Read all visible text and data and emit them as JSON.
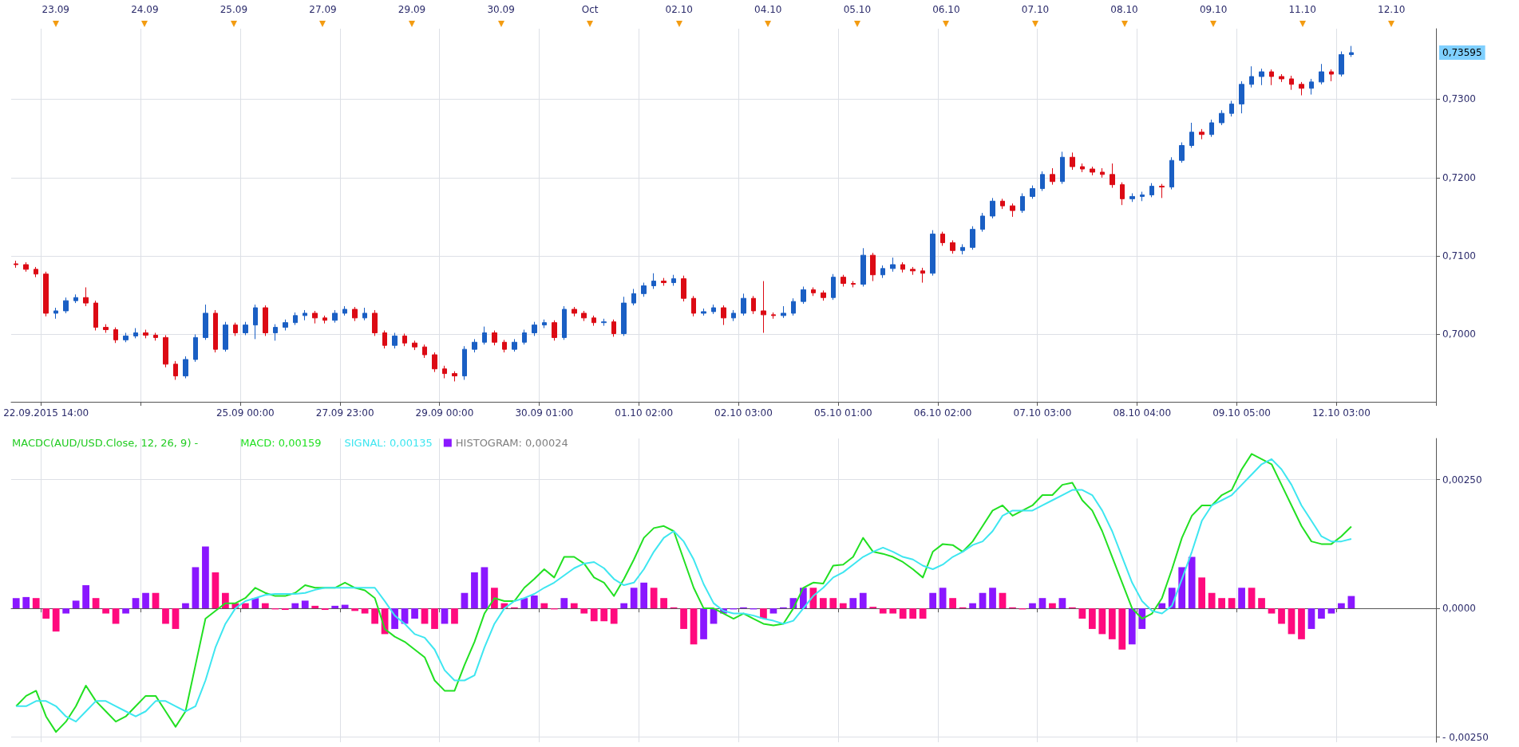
{
  "chart_data": [
    {
      "type": "candlestick",
      "categories": [
        null,
        null,
        null,
        "22.09.2015 14:00",
        null,
        null,
        null,
        null,
        null,
        null,
        null,
        null,
        null,
        null,
        null,
        null,
        null,
        null,
        null,
        null,
        null,
        null,
        null,
        "25.09 00:00",
        null,
        null,
        null,
        null,
        null,
        null,
        null,
        null,
        null,
        "27.09 23:00",
        null,
        null,
        null,
        null,
        null,
        null,
        null,
        null,
        null,
        "29.09 00:00",
        null,
        null,
        null,
        null,
        null,
        null,
        null,
        null,
        null,
        "30.09 01:00",
        null,
        null,
        null,
        null,
        null,
        null,
        null,
        null,
        null,
        "01.10 02:00",
        null,
        null,
        null,
        null,
        null,
        null,
        null,
        null,
        null,
        "02.10 03:00",
        null,
        null,
        null,
        null,
        null,
        null,
        null,
        null,
        null,
        "05.10 01:00",
        null,
        null,
        null,
        null,
        null,
        null,
        null,
        null,
        null,
        "06.10 02:00",
        null,
        null,
        null,
        null,
        null,
        null,
        null,
        null,
        null,
        "07.10 03:00",
        null,
        null,
        null,
        null,
        null,
        null,
        null,
        null,
        null,
        "08.10 04:00",
        null,
        null,
        null,
        null,
        null,
        null,
        null,
        null,
        null,
        "09.10 05:00",
        null,
        null,
        null,
        null,
        null,
        null,
        null,
        null,
        null,
        "12.10 03:00",
        null,
        null,
        null,
        null,
        null,
        null,
        null,
        null,
        null
      ],
      "ohlc": [
        [
          0.709,
          0.7094,
          0.7085,
          0.7089
        ],
        [
          0.7089,
          0.7092,
          0.708,
          0.7083
        ],
        [
          0.7083,
          0.7086,
          0.7073,
          0.7077
        ],
        [
          0.7077,
          0.708,
          0.7023,
          0.7027
        ],
        [
          0.7027,
          0.7034,
          0.702,
          0.703
        ],
        [
          0.703,
          0.7047,
          0.7027,
          0.7043
        ],
        [
          0.7043,
          0.7051,
          0.704,
          0.7047
        ],
        [
          0.7047,
          0.706,
          0.7036,
          0.704
        ],
        [
          0.704,
          0.7043,
          0.7005,
          0.7009
        ],
        [
          0.7009,
          0.7013,
          0.7002,
          0.7006
        ],
        [
          0.7006,
          0.7009,
          0.6989,
          0.6993
        ],
        [
          0.6993,
          0.7002,
          0.699,
          0.6998
        ],
        [
          0.6998,
          0.7008,
          0.6995,
          0.7002
        ],
        [
          0.7002,
          0.7006,
          0.6995,
          0.6999
        ],
        [
          0.6999,
          0.7002,
          0.6992,
          0.6996
        ],
        [
          0.6996,
          0.6999,
          0.6958,
          0.6962
        ],
        [
          0.6962,
          0.6966,
          0.6942,
          0.6947
        ],
        [
          0.6947,
          0.6972,
          0.6944,
          0.6968
        ],
        [
          0.6968,
          0.7,
          0.6965,
          0.6996
        ],
        [
          0.6996,
          0.7038,
          0.6993,
          0.7027
        ],
        [
          0.7027,
          0.7031,
          0.6977,
          0.6981
        ],
        [
          0.6981,
          0.7016,
          0.6978,
          0.7012
        ],
        [
          0.7012,
          0.7015,
          0.6998,
          0.7002
        ],
        [
          0.7002,
          0.7016,
          0.6999,
          0.7012
        ],
        [
          0.7012,
          0.7038,
          0.6994,
          0.7034
        ],
        [
          0.7034,
          0.7037,
          0.6998,
          0.7002
        ],
        [
          0.7002,
          0.7013,
          0.6992,
          0.7009
        ],
        [
          0.7009,
          0.7019,
          0.7005,
          0.7015
        ],
        [
          0.7015,
          0.7028,
          0.7012,
          0.7024
        ],
        [
          0.7024,
          0.7031,
          0.7018,
          0.7027
        ],
        [
          0.7027,
          0.703,
          0.7014,
          0.7021
        ],
        [
          0.7021,
          0.7024,
          0.7014,
          0.7018
        ],
        [
          0.7018,
          0.7031,
          0.7015,
          0.7027
        ],
        [
          0.7027,
          0.7036,
          0.7024,
          0.7032
        ],
        [
          0.7032,
          0.7035,
          0.7017,
          0.7021
        ],
        [
          0.7021,
          0.7034,
          0.7018,
          0.7027
        ],
        [
          0.7027,
          0.7031,
          0.6998,
          0.7002
        ],
        [
          0.7002,
          0.7005,
          0.6982,
          0.6986
        ],
        [
          0.6986,
          0.7002,
          0.6982,
          0.6998
        ],
        [
          0.6998,
          0.7001,
          0.6985,
          0.6989
        ],
        [
          0.6989,
          0.6992,
          0.698,
          0.6984
        ],
        [
          0.6984,
          0.6987,
          0.697,
          0.6974
        ],
        [
          0.6974,
          0.6977,
          0.6952,
          0.6956
        ],
        [
          0.6956,
          0.696,
          0.6944,
          0.695
        ],
        [
          0.695,
          0.6953,
          0.694,
          0.6947
        ],
        [
          0.6947,
          0.6985,
          0.6942,
          0.6981
        ],
        [
          0.6981,
          0.6994,
          0.6977,
          0.699
        ],
        [
          0.699,
          0.701,
          0.6987,
          0.7002
        ],
        [
          0.7002,
          0.7005,
          0.6986,
          0.699
        ],
        [
          0.699,
          0.6993,
          0.6977,
          0.6981
        ],
        [
          0.6981,
          0.6994,
          0.6978,
          0.699
        ],
        [
          0.699,
          0.7006,
          0.6987,
          0.7002
        ],
        [
          0.7002,
          0.7016,
          0.6998,
          0.7012
        ],
        [
          0.7012,
          0.7019,
          0.7008,
          0.7015
        ],
        [
          0.7015,
          0.7018,
          0.6992,
          0.6996
        ],
        [
          0.6996,
          0.7036,
          0.6993,
          0.7032
        ],
        [
          0.7032,
          0.7035,
          0.7023,
          0.7027
        ],
        [
          0.7027,
          0.703,
          0.7017,
          0.7021
        ],
        [
          0.7021,
          0.7024,
          0.7011,
          0.7015
        ],
        [
          0.7015,
          0.702,
          0.7011,
          0.7016
        ],
        [
          0.7016,
          0.7019,
          0.6997,
          0.7001
        ],
        [
          0.7001,
          0.7048,
          0.6998,
          0.704
        ],
        [
          0.704,
          0.7058,
          0.7037,
          0.7052
        ],
        [
          0.7052,
          0.7066,
          0.7048,
          0.7062
        ],
        [
          0.7062,
          0.7078,
          0.7058,
          0.7068
        ],
        [
          0.7068,
          0.7072,
          0.7062,
          0.7066
        ],
        [
          0.7066,
          0.7076,
          0.7062,
          0.7071
        ],
        [
          0.7071,
          0.7075,
          0.7042,
          0.7046
        ],
        [
          0.7046,
          0.7049,
          0.7023,
          0.7027
        ],
        [
          0.7027,
          0.7033,
          0.7024,
          0.7029
        ],
        [
          0.7029,
          0.7038,
          0.7026,
          0.7034
        ],
        [
          0.7034,
          0.7037,
          0.7012,
          0.7021
        ],
        [
          0.7021,
          0.7031,
          0.7017,
          0.7027
        ],
        [
          0.7027,
          0.7052,
          0.7024,
          0.7046
        ],
        [
          0.7046,
          0.7049,
          0.7026,
          0.703
        ],
        [
          0.703,
          0.7068,
          0.7002,
          0.7025
        ],
        [
          0.7025,
          0.7028,
          0.702,
          0.7024
        ],
        [
          0.7024,
          0.7036,
          0.7021,
          0.7027
        ],
        [
          0.7027,
          0.7046,
          0.7024,
          0.7042
        ],
        [
          0.7042,
          0.7061,
          0.7039,
          0.7057
        ],
        [
          0.7057,
          0.706,
          0.7049,
          0.7053
        ],
        [
          0.7053,
          0.7056,
          0.7043,
          0.7047
        ],
        [
          0.7047,
          0.7077,
          0.7044,
          0.7073
        ],
        [
          0.7073,
          0.7076,
          0.7061,
          0.7065
        ],
        [
          0.7065,
          0.7068,
          0.706,
          0.7064
        ],
        [
          0.7064,
          0.711,
          0.7061,
          0.7101
        ],
        [
          0.7101,
          0.7104,
          0.7068,
          0.7076
        ],
        [
          0.7076,
          0.7088,
          0.7072,
          0.7084
        ],
        [
          0.7084,
          0.7098,
          0.708,
          0.7089
        ],
        [
          0.7089,
          0.7092,
          0.7079,
          0.7083
        ],
        [
          0.7083,
          0.7086,
          0.7076,
          0.7081
        ],
        [
          0.7081,
          0.7085,
          0.7066,
          0.7078
        ],
        [
          0.7078,
          0.7133,
          0.7075,
          0.7128
        ],
        [
          0.7128,
          0.7131,
          0.7113,
          0.7117
        ],
        [
          0.7117,
          0.712,
          0.7103,
          0.7107
        ],
        [
          0.7107,
          0.7115,
          0.7102,
          0.7111
        ],
        [
          0.7111,
          0.7138,
          0.7108,
          0.7134
        ],
        [
          0.7134,
          0.7155,
          0.7131,
          0.7151
        ],
        [
          0.7151,
          0.7174,
          0.7148,
          0.717
        ],
        [
          0.717,
          0.7173,
          0.716,
          0.7164
        ],
        [
          0.7164,
          0.7167,
          0.715,
          0.7158
        ],
        [
          0.7158,
          0.718,
          0.7155,
          0.7176
        ],
        [
          0.7176,
          0.719,
          0.7173,
          0.7186
        ],
        [
          0.7186,
          0.7208,
          0.7183,
          0.7204
        ],
        [
          0.7204,
          0.7212,
          0.7191,
          0.7195
        ],
        [
          0.7195,
          0.7233,
          0.7192,
          0.7226
        ],
        [
          0.7226,
          0.7232,
          0.721,
          0.7214
        ],
        [
          0.7214,
          0.7218,
          0.7207,
          0.7211
        ],
        [
          0.7211,
          0.7214,
          0.7203,
          0.7207
        ],
        [
          0.7207,
          0.7212,
          0.72,
          0.7204
        ],
        [
          0.7204,
          0.7218,
          0.7187,
          0.7191
        ],
        [
          0.7191,
          0.7194,
          0.7165,
          0.7173
        ],
        [
          0.7173,
          0.718,
          0.7169,
          0.7176
        ],
        [
          0.7176,
          0.7182,
          0.717,
          0.7178
        ],
        [
          0.7178,
          0.7193,
          0.7175,
          0.7189
        ],
        [
          0.7189,
          0.7192,
          0.7174,
          0.7188
        ],
        [
          0.7188,
          0.7226,
          0.7185,
          0.7222
        ],
        [
          0.7222,
          0.7245,
          0.7219,
          0.7241
        ],
        [
          0.7241,
          0.727,
          0.7238,
          0.7258
        ],
        [
          0.7258,
          0.7262,
          0.7249,
          0.7255
        ],
        [
          0.7255,
          0.7274,
          0.7252,
          0.727
        ],
        [
          0.727,
          0.7286,
          0.7267,
          0.7282
        ],
        [
          0.7282,
          0.7298,
          0.7278,
          0.7294
        ],
        [
          0.7294,
          0.7323,
          0.7282,
          0.7319
        ],
        [
          0.7319,
          0.7342,
          0.7315,
          0.7329
        ],
        [
          0.7329,
          0.7339,
          0.7318,
          0.7335
        ],
        [
          0.7335,
          0.7338,
          0.7318,
          0.7329
        ],
        [
          0.7329,
          0.7332,
          0.7322,
          0.7326
        ],
        [
          0.7326,
          0.733,
          0.7312,
          0.7319
        ],
        [
          0.7319,
          0.7322,
          0.7305,
          0.7314
        ],
        [
          0.7314,
          0.7326,
          0.7306,
          0.7322
        ],
        [
          0.7322,
          0.7345,
          0.7319,
          0.7335
        ],
        [
          0.7335,
          0.7338,
          0.7323,
          0.7332
        ],
        [
          0.7332,
          0.7361,
          0.7329,
          0.7357
        ],
        [
          0.7357,
          0.7368,
          0.7354,
          0.73595
        ],
        null,
        null,
        null,
        null,
        null,
        null,
        null,
        null
      ],
      "colors": [
        "#dc0a14",
        "#dc0a14",
        "#dc0a14",
        "#dc0a14",
        "#1a5fc4",
        "#1a5fc4",
        "#1a5fc4",
        "#dc0a14",
        "#dc0a14",
        "#dc0a14",
        "#dc0a14",
        "#1a5fc4",
        "#1a5fc4",
        "#dc0a14",
        "#dc0a14",
        "#dc0a14",
        "#dc0a14",
        "#1a5fc4",
        "#1a5fc4",
        "#1a5fc4",
        "#dc0a14",
        "#1a5fc4",
        "#dc0a14",
        "#1a5fc4",
        "#1a5fc4",
        "#dc0a14",
        "#1a5fc4",
        "#1a5fc4",
        "#1a5fc4",
        "#1a5fc4",
        "#dc0a14",
        "#dc0a14",
        "#1a5fc4",
        "#1a5fc4",
        "#dc0a14",
        "#1a5fc4",
        "#dc0a14",
        "#dc0a14",
        "#1a5fc4",
        "#dc0a14",
        "#dc0a14",
        "#dc0a14",
        "#dc0a14",
        "#dc0a14",
        "#dc0a14",
        "#1a5fc4",
        "#1a5fc4",
        "#1a5fc4",
        "#dc0a14",
        "#dc0a14",
        "#1a5fc4",
        "#1a5fc4",
        "#1a5fc4",
        "#1a5fc4",
        "#dc0a14",
        "#1a5fc4",
        "#dc0a14",
        "#dc0a14",
        "#dc0a14",
        "#1a5fc4",
        "#dc0a14",
        "#1a5fc4",
        "#1a5fc4",
        "#1a5fc4",
        "#1a5fc4",
        "#dc0a14",
        "#1a5fc4",
        "#dc0a14",
        "#dc0a14",
        "#1a5fc4",
        "#1a5fc4",
        "#dc0a14",
        "#1a5fc4",
        "#1a5fc4",
        "#dc0a14",
        "#dc0a14",
        "#dc0a14",
        "#1a5fc4",
        "#1a5fc4",
        "#1a5fc4",
        "#dc0a14",
        "#dc0a14",
        "#1a5fc4",
        "#dc0a14",
        "#dc0a14",
        "#1a5fc4",
        "#dc0a14",
        "#1a5fc4",
        "#1a5fc4",
        "#dc0a14",
        "#dc0a14",
        "#dc0a14",
        "#1a5fc4",
        "#dc0a14",
        "#dc0a14",
        "#1a5fc4",
        "#1a5fc4",
        "#1a5fc4",
        "#1a5fc4",
        "#dc0a14",
        "#dc0a14",
        "#1a5fc4",
        "#1a5fc4",
        "#1a5fc4",
        "#dc0a14",
        "#1a5fc4",
        "#dc0a14",
        "#dc0a14",
        "#dc0a14",
        "#dc0a14",
        "#dc0a14",
        "#dc0a14",
        "#1a5fc4",
        "#1a5fc4",
        "#1a5fc4",
        "#dc0a14",
        "#1a5fc4",
        "#1a5fc4",
        "#1a5fc4",
        "#dc0a14",
        "#1a5fc4",
        "#1a5fc4",
        "#1a5fc4",
        "#1a5fc4",
        "#1a5fc4",
        "#1a5fc4",
        "#dc0a14",
        "#dc0a14",
        "#dc0a14",
        "#dc0a14",
        "#1a5fc4",
        "#1a5fc4",
        "#dc0a14",
        "#1a5fc4",
        "#1a5fc4",
        null,
        null,
        null,
        null,
        null,
        null,
        null,
        null
      ],
      "ylim": [
        0.6914,
        0.739
      ],
      "yticks": [
        {
          "value": 0.7,
          "label": "0,7000"
        },
        {
          "value": 0.71,
          "label": "0,7100"
        },
        {
          "value": 0.72,
          "label": "0,7200"
        },
        {
          "value": 0.73,
          "label": "0,7300"
        }
      ],
      "annotations": [
        "0,73595",
        "23.09",
        "24.09",
        "25.09",
        "27.09",
        "29.09",
        "30.09",
        "Oct",
        "02.10",
        "04.10",
        "05.10",
        "06.10",
        "07.10",
        "08.10",
        "09.10",
        "11.10",
        "12.10"
      ],
      "grid": true
    },
    {
      "type": "bar",
      "title": "MACDC(AUD/USD.Close, 12, 26, 9) -",
      "categories": [
        null,
        null,
        null,
        null,
        null,
        null,
        null,
        null,
        null,
        null,
        null,
        null,
        null,
        null,
        null,
        null,
        null,
        null,
        null,
        null,
        null,
        null,
        null,
        null,
        null,
        null,
        null,
        null,
        null,
        null,
        null,
        null,
        null,
        null,
        null,
        null,
        null,
        null,
        null,
        null,
        null,
        null,
        null,
        null,
        null,
        null,
        null,
        null,
        null,
        null,
        null,
        null,
        null,
        null,
        null,
        null,
        null,
        null,
        null,
        null,
        null,
        null,
        null,
        null,
        null,
        null,
        null,
        null,
        null,
        null,
        null,
        null,
        null,
        null,
        null,
        null,
        null,
        null,
        null,
        null,
        null,
        null,
        null,
        null,
        null,
        null,
        null,
        null,
        null,
        null,
        null,
        null,
        null,
        null,
        null,
        null,
        null,
        null,
        null,
        null,
        null,
        null,
        null,
        null,
        null,
        null,
        null,
        null,
        null,
        null,
        null,
        null,
        null,
        null,
        null,
        null,
        null,
        null,
        null,
        null,
        null,
        null,
        null,
        null,
        null,
        null,
        null,
        null,
        null,
        null,
        null,
        null,
        null,
        null,
        null,
        null,
        null,
        null,
        null,
        null,
        null,
        null,
        null
      ],
      "series": [
        {
          "name": "HISTOGRAM: 0,00024",
          "values": [
            0.0002,
            0.00022,
            0.0002,
            -0.0002,
            -0.00045,
            -0.0001,
            0.00015,
            0.00045,
            0.0002,
            -0.0001,
            -0.0003,
            -0.0001,
            0.0002,
            0.0003,
            0.0003,
            -0.0003,
            -0.0004,
            0.0001,
            0.0008,
            0.0012,
            0.0007,
            0.0003,
            0.0001,
            0.0001,
            0.0002,
            0.0001,
            -2e-05,
            -3e-05,
            0.0001,
            0.00015,
            5e-05,
            -3e-05,
            5e-05,
            7e-05,
            -5e-05,
            -0.0001,
            -0.0003,
            -0.0005,
            -0.0004,
            -0.0003,
            -0.0002,
            -0.0003,
            -0.0004,
            -0.0003,
            -0.0003,
            0.0003,
            0.0007,
            0.0008,
            0.0004,
            0.0001,
            2e-05,
            0.0002,
            0.00025,
            0.0001,
            -2e-05,
            0.0002,
            0.0001,
            -0.0001,
            -0.00025,
            -0.00025,
            -0.0003,
            0.0001,
            0.0004,
            0.0005,
            0.0004,
            0.0002,
            2e-05,
            -0.0004,
            -0.0007,
            -0.0006,
            -0.0003,
            -0.0001,
            -2e-05,
            2e-05,
            -2e-05,
            -0.0002,
            -0.0001,
            2e-05,
            0.0002,
            0.0004,
            0.0004,
            0.0002,
            0.0002,
            0.0001,
            0.0002,
            0.0003,
            3e-05,
            -0.0001,
            -0.0001,
            -0.0002,
            -0.0002,
            -0.0002,
            0.0003,
            0.0004,
            0.0002,
            2e-05,
            0.0001,
            0.0003,
            0.0004,
            0.0003,
            2e-05,
            -2e-05,
            0.0001,
            0.0002,
            0.0001,
            0.0002,
            2e-05,
            -0.0002,
            -0.0004,
            -0.0005,
            -0.0006,
            -0.0008,
            -0.0007,
            -0.0004,
            null,
            0.0001,
            0.0004,
            0.0008,
            0.001,
            0.0006,
            0.0003,
            0.0002,
            0.0002,
            0.0004,
            0.0004,
            0.0002,
            -0.0001,
            -0.0003,
            -0.0005,
            -0.0006,
            -0.0004,
            -0.0002,
            -0.0001,
            0.0001,
            0.00024,
            null,
            null,
            null,
            null,
            null,
            null,
            null,
            null
          ],
          "colors": [
            "#8a17ff",
            "#8a17ff",
            "#ff0a7e",
            "#ff0a7e",
            "#ff0a7e",
            "#8a17ff",
            "#8a17ff",
            "#8a17ff",
            "#ff0a7e",
            "#ff0a7e",
            "#ff0a7e",
            "#8a17ff",
            "#8a17ff",
            "#8a17ff",
            "#ff0a7e",
            "#ff0a7e",
            "#ff0a7e",
            "#8a17ff",
            "#8a17ff",
            "#8a17ff",
            "#ff0a7e",
            "#ff0a7e",
            "#ff0a7e",
            "#ff0a7e",
            "#8a17ff",
            "#ff0a7e",
            "#ff0a7e",
            "#ff0a7e",
            "#8a17ff",
            "#8a17ff",
            "#ff0a7e",
            "#ff0a7e",
            "#8a17ff",
            "#8a17ff",
            "#ff0a7e",
            "#ff0a7e",
            "#ff0a7e",
            "#ff0a7e",
            "#8a17ff",
            "#8a17ff",
            "#8a17ff",
            "#ff0a7e",
            "#ff0a7e",
            "#8a17ff",
            "#ff0a7e",
            "#8a17ff",
            "#8a17ff",
            "#8a17ff",
            "#ff0a7e",
            "#ff0a7e",
            "#ff0a7e",
            "#8a17ff",
            "#8a17ff",
            "#ff0a7e",
            "#ff0a7e",
            "#8a17ff",
            "#ff0a7e",
            "#ff0a7e",
            "#ff0a7e",
            "#ff0a7e",
            "#ff0a7e",
            "#8a17ff",
            "#8a17ff",
            "#8a17ff",
            "#ff0a7e",
            "#ff0a7e",
            "#ff0a7e",
            "#ff0a7e",
            "#ff0a7e",
            "#8a17ff",
            "#8a17ff",
            "#8a17ff",
            "#8a17ff",
            "#8a17ff",
            "#8a17ff",
            "#ff0a7e",
            "#8a17ff",
            "#8a17ff",
            "#8a17ff",
            "#8a17ff",
            "#ff0a7e",
            "#ff0a7e",
            "#ff0a7e",
            "#ff0a7e",
            "#8a17ff",
            "#8a17ff",
            "#ff0a7e",
            "#ff0a7e",
            "#ff0a7e",
            "#ff0a7e",
            "#ff0a7e",
            "#ff0a7e",
            "#8a17ff",
            "#8a17ff",
            "#ff0a7e",
            "#ff0a7e",
            "#8a17ff",
            "#8a17ff",
            "#8a17ff",
            "#ff0a7e",
            "#ff0a7e",
            "#ff0a7e",
            "#8a17ff",
            "#8a17ff",
            "#ff0a7e",
            "#8a17ff",
            "#ff0a7e",
            "#ff0a7e",
            "#ff0a7e",
            "#ff0a7e",
            "#ff0a7e",
            "#ff0a7e",
            "#8a17ff",
            "#8a17ff",
            "#8a17ff",
            "#8a17ff",
            "#8a17ff",
            "#8a17ff",
            "#8a17ff",
            "#ff0a7e",
            "#ff0a7e",
            "#ff0a7e",
            "#ff0a7e",
            "#8a17ff",
            "#ff0a7e",
            "#ff0a7e",
            "#ff0a7e",
            "#ff0a7e",
            "#ff0a7e",
            "#ff0a7e",
            "#8a17ff",
            "#8a17ff",
            "#8a17ff",
            "#8a17ff",
            "#8a17ff",
            null,
            null,
            null,
            null,
            null,
            null,
            null,
            null
          ]
        },
        {
          "name": "MACD: 0,00159",
          "type": "line",
          "color": "#22e022",
          "values": [
            -0.0019,
            -0.0017,
            -0.0016,
            -0.0021,
            -0.0024,
            -0.0022,
            -0.0019,
            -0.0015,
            -0.0018,
            -0.002,
            -0.0022,
            -0.0021,
            -0.0019,
            -0.0017,
            -0.0017,
            -0.002,
            -0.0023,
            -0.002,
            -0.0011,
            -0.0002,
            -5e-05,
            0.0001,
            0.0001,
            0.0002,
            0.0004,
            0.0003,
            0.00024,
            0.00024,
            0.0003,
            0.00045,
            0.0004,
            0.0004,
            0.0004,
            0.0005,
            0.0004,
            0.00035,
            0.0002,
            -0.0004,
            -0.00055,
            -0.00065,
            -0.0008,
            -0.00095,
            -0.0014,
            -0.0016,
            -0.0016,
            -0.0011,
            -0.00065,
            -0.0001,
            0.0002,
            0.00014,
            0.00014,
            0.0004,
            0.00057,
            0.00076,
            0.0006,
            0.001,
            0.001,
            0.00087,
            0.0006,
            0.0005,
            0.00024,
            0.00057,
            0.00095,
            0.00137,
            0.00156,
            0.0016,
            0.0015,
            0.00095,
            0.0004,
            0.0,
            0.0,
            -0.0001,
            -0.0002,
            -0.0001,
            -0.0002,
            -0.0003,
            -0.00033,
            -0.0003,
            0.0,
            0.0004,
            0.0005,
            0.00048,
            0.00083,
            0.00085,
            0.001,
            0.00137,
            0.0011,
            0.00106,
            0.001,
            0.0009,
            0.00076,
            0.0006,
            0.0011,
            0.00125,
            0.00123,
            0.0011,
            0.0013,
            0.0016,
            0.0019,
            0.002,
            0.0018,
            0.0019,
            0.002,
            0.0022,
            0.0022,
            0.0024,
            0.00244,
            0.0021,
            0.0019,
            0.0015,
            0.001,
            0.0005,
            0.0,
            -0.0002,
            -0.0001,
            0.0002,
            0.00076,
            0.00137,
            0.0018,
            0.002,
            0.002,
            0.0022,
            0.0023,
            0.0027,
            0.003,
            0.0029,
            0.0028,
            0.0024,
            0.002,
            0.0016,
            0.0013,
            0.00125,
            0.00125,
            0.0014,
            0.00159,
            null,
            null,
            null,
            null,
            null,
            null,
            null,
            null
          ]
        },
        {
          "name": "SIGNAL: 0,00135",
          "type": "line",
          "color": "#3ee6f0",
          "values": [
            -0.0019,
            -0.0019,
            -0.0018,
            -0.0018,
            -0.0019,
            -0.0021,
            -0.0022,
            -0.002,
            -0.0018,
            -0.0018,
            -0.0019,
            -0.002,
            -0.0021,
            -0.002,
            -0.0018,
            -0.0018,
            -0.0019,
            -0.002,
            -0.0019,
            -0.0014,
            -0.00076,
            -0.0003,
            0.0,
            0.00014,
            0.0002,
            0.00026,
            0.00028,
            0.00028,
            0.00028,
            0.0003,
            0.00036,
            0.0004,
            0.0004,
            0.0004,
            0.0004,
            0.0004,
            0.0004,
            0.00014,
            -0.00014,
            -0.0003,
            -0.0005,
            -0.00057,
            -0.0008,
            -0.0012,
            -0.0014,
            -0.0014,
            -0.0013,
            -0.00076,
            -0.0003,
            0.0,
            0.00014,
            0.0002,
            0.00028,
            0.0004,
            0.0005,
            0.00064,
            0.00078,
            0.00087,
            0.0009,
            0.00078,
            0.00057,
            0.00045,
            0.0005,
            0.00076,
            0.0011,
            0.00137,
            0.0015,
            0.0013,
            0.00095,
            0.00047,
            0.0001,
            -5e-05,
            -0.0001,
            -0.0001,
            -0.00014,
            -0.0002,
            -0.00024,
            -0.0003,
            -0.00024,
            0.0,
            0.00024,
            0.0004,
            0.0006,
            0.0007,
            0.00085,
            0.001,
            0.0011,
            0.00118,
            0.0011,
            0.001,
            0.00095,
            0.00083,
            0.00076,
            0.00085,
            0.001,
            0.0011,
            0.00123,
            0.0013,
            0.0015,
            0.0018,
            0.0019,
            0.0019,
            0.0019,
            0.002,
            0.0021,
            0.0022,
            0.0023,
            0.0023,
            0.0022,
            0.0019,
            0.0015,
            0.001,
            0.0005,
            0.00014,
            -5e-05,
            -0.0001,
            5e-05,
            0.00057,
            0.0011,
            0.0017,
            0.002,
            0.0021,
            0.0022,
            0.0024,
            0.0026,
            0.0028,
            0.0029,
            0.0027,
            0.0024,
            0.002,
            0.0017,
            0.0014,
            0.0013,
            0.0013,
            0.00135,
            null,
            null,
            null,
            null,
            null,
            null,
            null,
            null
          ]
        }
      ],
      "ylim": [
        -0.0026,
        0.0033
      ],
      "yticks": [
        {
          "value": -0.0025,
          "label": "- 0,00250"
        },
        {
          "value": 0,
          "label": "0,0000"
        },
        {
          "value": 0.0025,
          "label": "0,00250"
        }
      ],
      "tick_labels": "y",
      "legend": "top left",
      "marker": "none",
      "grid": true
    }
  ]
}
